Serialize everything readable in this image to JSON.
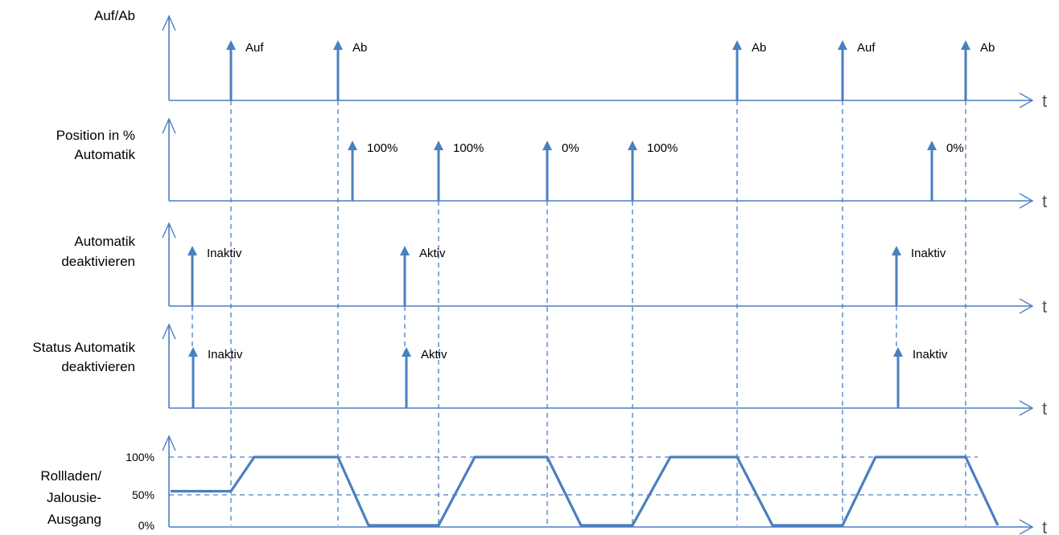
{
  "colors": {
    "primary": "#4a7fc1",
    "axis": "#4a7fc1",
    "text": "#000000"
  },
  "axis_symbol": "t",
  "rows": [
    {
      "id": "auf-ab",
      "label_lines": [
        "Auf/Ab"
      ],
      "events": [
        {
          "t": 287,
          "label": "Auf"
        },
        {
          "t": 420,
          "label": "Ab"
        },
        {
          "t": 916,
          "label": "Ab"
        },
        {
          "t": 1047,
          "label": "Auf"
        },
        {
          "t": 1200,
          "label": "Ab"
        }
      ]
    },
    {
      "id": "position",
      "label_lines": [
        "Position in %",
        "Automatik"
      ],
      "events": [
        {
          "t": 438,
          "label": "100%"
        },
        {
          "t": 545,
          "label": "100%"
        },
        {
          "t": 680,
          "label": "0%"
        },
        {
          "t": 786,
          "label": "100%"
        },
        {
          "t": 1158,
          "label": "0%"
        }
      ]
    },
    {
      "id": "automatik-deaktivieren",
      "label_lines": [
        "Automatik",
        "deaktivieren"
      ],
      "events": [
        {
          "t": 239,
          "label": "Inaktiv"
        },
        {
          "t": 503,
          "label": "Aktiv"
        },
        {
          "t": 1114,
          "label": "Inaktiv"
        }
      ]
    },
    {
      "id": "status-automatik",
      "label_lines": [
        "Status Automatik",
        "deaktivieren"
      ],
      "events": [
        {
          "t": 240,
          "label": "Inaktiv"
        },
        {
          "t": 505,
          "label": "Aktiv"
        },
        {
          "t": 1116,
          "label": "Inaktiv"
        }
      ]
    }
  ],
  "output": {
    "label_lines": [
      "Rollladen/",
      "Jalousie-",
      "Ausgang"
    ],
    "levels": [
      "100%",
      "50%",
      "0%"
    ],
    "curve": [
      {
        "t": 212,
        "pct": 50
      },
      {
        "t": 287,
        "pct": 50
      },
      {
        "t": 316,
        "pct": 100
      },
      {
        "t": 420,
        "pct": 100
      },
      {
        "t": 458,
        "pct": 0
      },
      {
        "t": 545,
        "pct": 0
      },
      {
        "t": 590,
        "pct": 100
      },
      {
        "t": 680,
        "pct": 100
      },
      {
        "t": 722,
        "pct": 0
      },
      {
        "t": 786,
        "pct": 0
      },
      {
        "t": 833,
        "pct": 100
      },
      {
        "t": 916,
        "pct": 100
      },
      {
        "t": 960,
        "pct": 0
      },
      {
        "t": 1047,
        "pct": 0
      },
      {
        "t": 1088,
        "pct": 100
      },
      {
        "t": 1200,
        "pct": 100
      },
      {
        "t": 1240,
        "pct": 0
      }
    ]
  },
  "vertical_links": [
    {
      "t": 287,
      "from": 0,
      "to": 4
    },
    {
      "t": 420,
      "from": 0,
      "to": 4
    },
    {
      "t": 916,
      "from": 0,
      "to": 4
    },
    {
      "t": 1047,
      "from": 0,
      "to": 4
    },
    {
      "t": 1200,
      "from": 0,
      "to": 4
    },
    {
      "t": 545,
      "from": 1,
      "to": 4
    },
    {
      "t": 680,
      "from": 1,
      "to": 4
    },
    {
      "t": 786,
      "from": 1,
      "to": 4
    },
    {
      "t": 239,
      "from": 2,
      "to": 3
    },
    {
      "t": 503,
      "from": 2,
      "to": 3
    },
    {
      "t": 1114,
      "from": 2,
      "to": 3
    }
  ]
}
